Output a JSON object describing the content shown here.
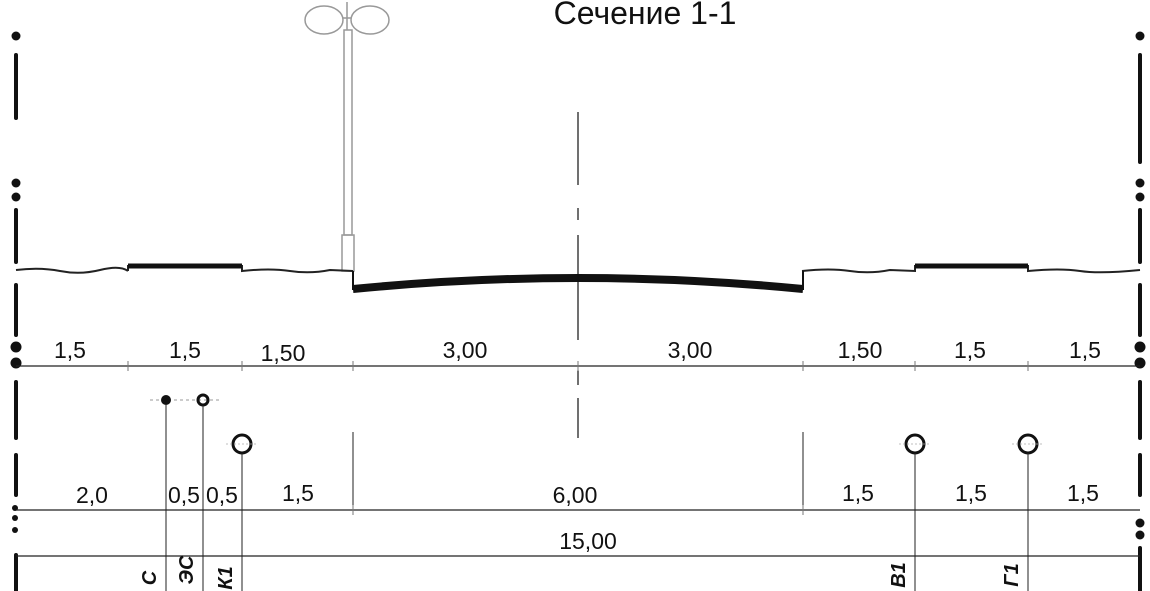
{
  "title": "Сечение 1-1",
  "row1_dimensions": [
    "1,5",
    "1,5",
    "1,50",
    "3,00",
    "3,00",
    "1,50",
    "1,5",
    "1,5"
  ],
  "row2_dimensions": [
    "2,0",
    "0,5",
    "0,5",
    "1,5",
    "6,00",
    "1,5",
    "1,5",
    "1,5"
  ],
  "total_width": "15,00",
  "utility_lines": [
    "С",
    "ЭС",
    "К1",
    "В1",
    "Г1"
  ]
}
